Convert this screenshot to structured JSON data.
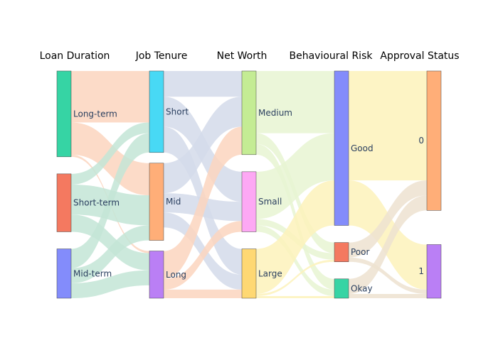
{
  "chart_data": {
    "type": "sankey",
    "columns": [
      "Loan Duration",
      "Job Tenure",
      "Net Worth",
      "Behavioural Risk",
      "Approval Status"
    ],
    "nodes": [
      {
        "id": "ld_long",
        "label": "Long-term",
        "column": 0,
        "color": "#36d4a4"
      },
      {
        "id": "ld_short",
        "label": "Short-term",
        "column": 0,
        "color": "#f47960"
      },
      {
        "id": "ld_mid",
        "label": "Mid-term",
        "column": 0,
        "color": "#838cfb"
      },
      {
        "id": "jt_short",
        "label": "Short",
        "column": 1,
        "color": "#48d9f5"
      },
      {
        "id": "jt_mid",
        "label": "Mid",
        "column": 1,
        "color": "#ffae78"
      },
      {
        "id": "jt_long",
        "label": "Long",
        "column": 1,
        "color": "#ba7ff5"
      },
      {
        "id": "nw_medium",
        "label": "Medium",
        "column": 2,
        "color": "#c4ec94"
      },
      {
        "id": "nw_small",
        "label": "Small",
        "column": 2,
        "color": "#fda8f4"
      },
      {
        "id": "nw_large",
        "label": "Large",
        "column": 2,
        "color": "#fed873"
      },
      {
        "id": "br_good",
        "label": "Good",
        "column": 3,
        "color": "#838cfb"
      },
      {
        "id": "br_poor",
        "label": "Poor",
        "column": 3,
        "color": "#f47960"
      },
      {
        "id": "br_okay",
        "label": "Okay",
        "column": 3,
        "color": "#36d4a4"
      },
      {
        "id": "as_0",
        "label": "0",
        "column": 4,
        "color": "#ffae78"
      },
      {
        "id": "as_1",
        "label": "1",
        "column": 4,
        "color": "#ba7ff5"
      }
    ],
    "links": [
      {
        "source": "ld_long",
        "target": "jt_short",
        "value": 24,
        "color": "#fbd5be"
      },
      {
        "source": "ld_long",
        "target": "jt_mid",
        "value": 15,
        "color": "#fbd5be"
      },
      {
        "source": "ld_long",
        "target": "jt_long",
        "value": 1,
        "color": "#fbd5be"
      },
      {
        "source": "ld_short",
        "target": "jt_short",
        "value": 5,
        "color": "#c3e5d6"
      },
      {
        "source": "ld_short",
        "target": "jt_mid",
        "value": 14,
        "color": "#c3e5d6"
      },
      {
        "source": "ld_short",
        "target": "jt_long",
        "value": 8,
        "color": "#c3e5d6"
      },
      {
        "source": "ld_mid",
        "target": "jt_short",
        "value": 9,
        "color": "#c3e5d6"
      },
      {
        "source": "ld_mid",
        "target": "jt_mid",
        "value": 7,
        "color": "#c3e5d6"
      },
      {
        "source": "ld_mid",
        "target": "jt_long",
        "value": 7,
        "color": "#c3e5d6"
      },
      {
        "source": "jt_short",
        "target": "nw_medium",
        "value": 12,
        "color": "#d4daea"
      },
      {
        "source": "jt_short",
        "target": "nw_small",
        "value": 14,
        "color": "#d4daea"
      },
      {
        "source": "jt_short",
        "target": "nw_large",
        "value": 12,
        "color": "#d4daea"
      },
      {
        "source": "jt_mid",
        "target": "nw_medium",
        "value": 14,
        "color": "#d4daea"
      },
      {
        "source": "jt_mid",
        "target": "nw_small",
        "value": 9,
        "color": "#d4daea"
      },
      {
        "source": "jt_mid",
        "target": "nw_large",
        "value": 7,
        "color": "#d4daea"
      },
      {
        "source": "jt_long",
        "target": "nw_medium",
        "value": 13,
        "color": "#fbd5be"
      },
      {
        "source": "jt_long",
        "target": "nw_small",
        "value": 5,
        "color": "#fbd5be"
      },
      {
        "source": "jt_long",
        "target": "nw_large",
        "value": 4,
        "color": "#fbd5be"
      },
      {
        "source": "nw_medium",
        "target": "br_good",
        "value": 29,
        "color": "#e8f5d2"
      },
      {
        "source": "nw_medium",
        "target": "br_poor",
        "value": 5,
        "color": "#e8f5d2"
      },
      {
        "source": "nw_medium",
        "target": "br_okay",
        "value": 5,
        "color": "#e8f5d2"
      },
      {
        "source": "nw_small",
        "target": "br_good",
        "value": 22,
        "color": "#e8f5d2"
      },
      {
        "source": "nw_small",
        "target": "br_poor",
        "value": 3,
        "color": "#e8f5d2"
      },
      {
        "source": "nw_small",
        "target": "br_okay",
        "value": 3,
        "color": "#e8f5d2"
      },
      {
        "source": "nw_large",
        "target": "br_good",
        "value": 21,
        "color": "#fdf2bb"
      },
      {
        "source": "nw_large",
        "target": "br_poor",
        "value": 1,
        "color": "#fdf2bb"
      },
      {
        "source": "nw_large",
        "target": "br_okay",
        "value": 1,
        "color": "#fdf2bb"
      },
      {
        "source": "br_good",
        "target": "as_0",
        "value": 51,
        "color": "#fdf2bb"
      },
      {
        "source": "br_good",
        "target": "as_1",
        "value": 21,
        "color": "#fdf2bb"
      },
      {
        "source": "br_poor",
        "target": "as_0",
        "value": 7,
        "color": "#ede2d0"
      },
      {
        "source": "br_poor",
        "target": "as_1",
        "value": 2,
        "color": "#ede2d0"
      },
      {
        "source": "br_okay",
        "target": "as_0",
        "value": 7,
        "color": "#ede2d0"
      },
      {
        "source": "br_okay",
        "target": "as_1",
        "value": 2,
        "color": "#ede2d0"
      }
    ]
  }
}
